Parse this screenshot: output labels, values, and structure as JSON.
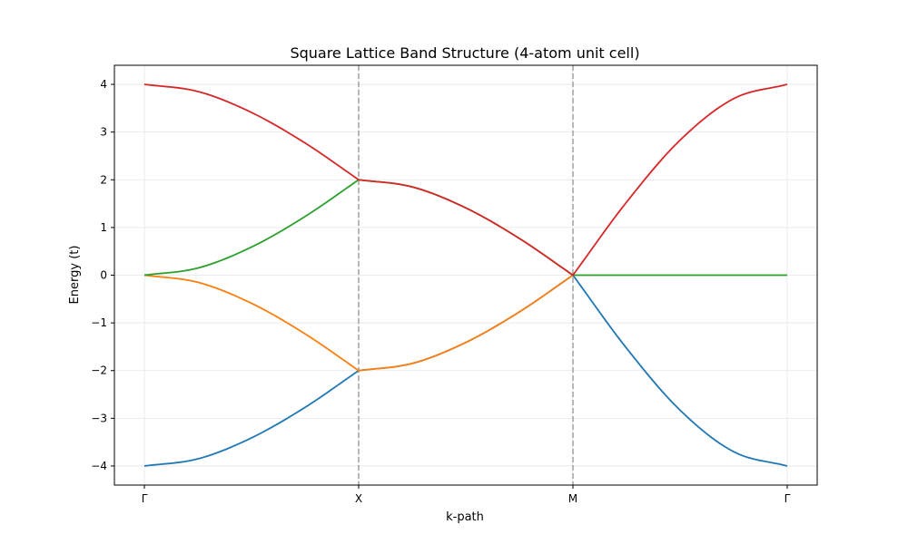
{
  "chart_data": {
    "type": "line",
    "title": "Square Lattice Band Structure (4-atom unit cell)",
    "xlabel": "k-path",
    "ylabel": "Energy (t)",
    "ylim": [
      -4.4,
      4.4
    ],
    "yticks": [
      4,
      3,
      2,
      1,
      0,
      -1,
      -2,
      -3,
      -4
    ],
    "ytick_labels": [
      "4",
      "3",
      "2",
      "1",
      "0",
      "−1",
      "−2",
      "−3",
      "−4"
    ],
    "high_symmetry_points": [
      {
        "label": "Γ",
        "x": 0
      },
      {
        "label": "X",
        "x": 1
      },
      {
        "label": "M",
        "x": 2
      },
      {
        "label": "Γ",
        "x": 3
      }
    ],
    "xlim": [
      -0.14,
      3.14
    ],
    "grid": true,
    "vertical_markers": [
      1,
      2
    ],
    "colors": {
      "band1": "#1f77b4",
      "band2": "#ff7f0e",
      "band3": "#2ca02c",
      "band4": "#d62728",
      "marker": "#a0a0a0",
      "grid": "#e5e5e5"
    },
    "series": [
      {
        "color": "#1f77b4",
        "x": [
          0,
          0.25,
          0.5,
          0.75,
          1,
          1.25,
          1.5,
          1.75,
          2,
          2.25,
          2.5,
          2.75,
          3
        ],
        "values": [
          -4,
          -3.85,
          -3.41,
          -2.77,
          -2,
          -1.85,
          -1.41,
          -0.77,
          0,
          -1.53,
          -2.83,
          -3.7,
          -4
        ]
      },
      {
        "color": "#ff7f0e",
        "x": [
          0,
          0.25,
          0.5,
          0.75,
          1,
          1.25,
          1.5,
          1.75,
          2
        ],
        "values": [
          0,
          -0.15,
          -0.59,
          -1.23,
          -2,
          -1.85,
          -1.41,
          -0.77,
          0
        ]
      },
      {
        "color": "#2ca02c",
        "x": [
          0,
          0.25,
          0.5,
          0.75,
          1,
          1.25,
          1.5,
          1.75,
          2,
          2.25,
          2.5,
          2.75,
          3
        ],
        "values": [
          0,
          0.15,
          0.59,
          1.23,
          2,
          1.85,
          1.41,
          0.77,
          0,
          0,
          0,
          0,
          0
        ]
      },
      {
        "color": "#d62728",
        "x": [
          0,
          0.25,
          0.5,
          0.75,
          1,
          1.25,
          1.5,
          1.75,
          2,
          2.25,
          2.5,
          2.75,
          3
        ],
        "values": [
          4,
          3.85,
          3.41,
          2.77,
          2,
          1.85,
          1.41,
          0.77,
          0,
          1.53,
          2.83,
          3.7,
          4
        ]
      }
    ]
  }
}
